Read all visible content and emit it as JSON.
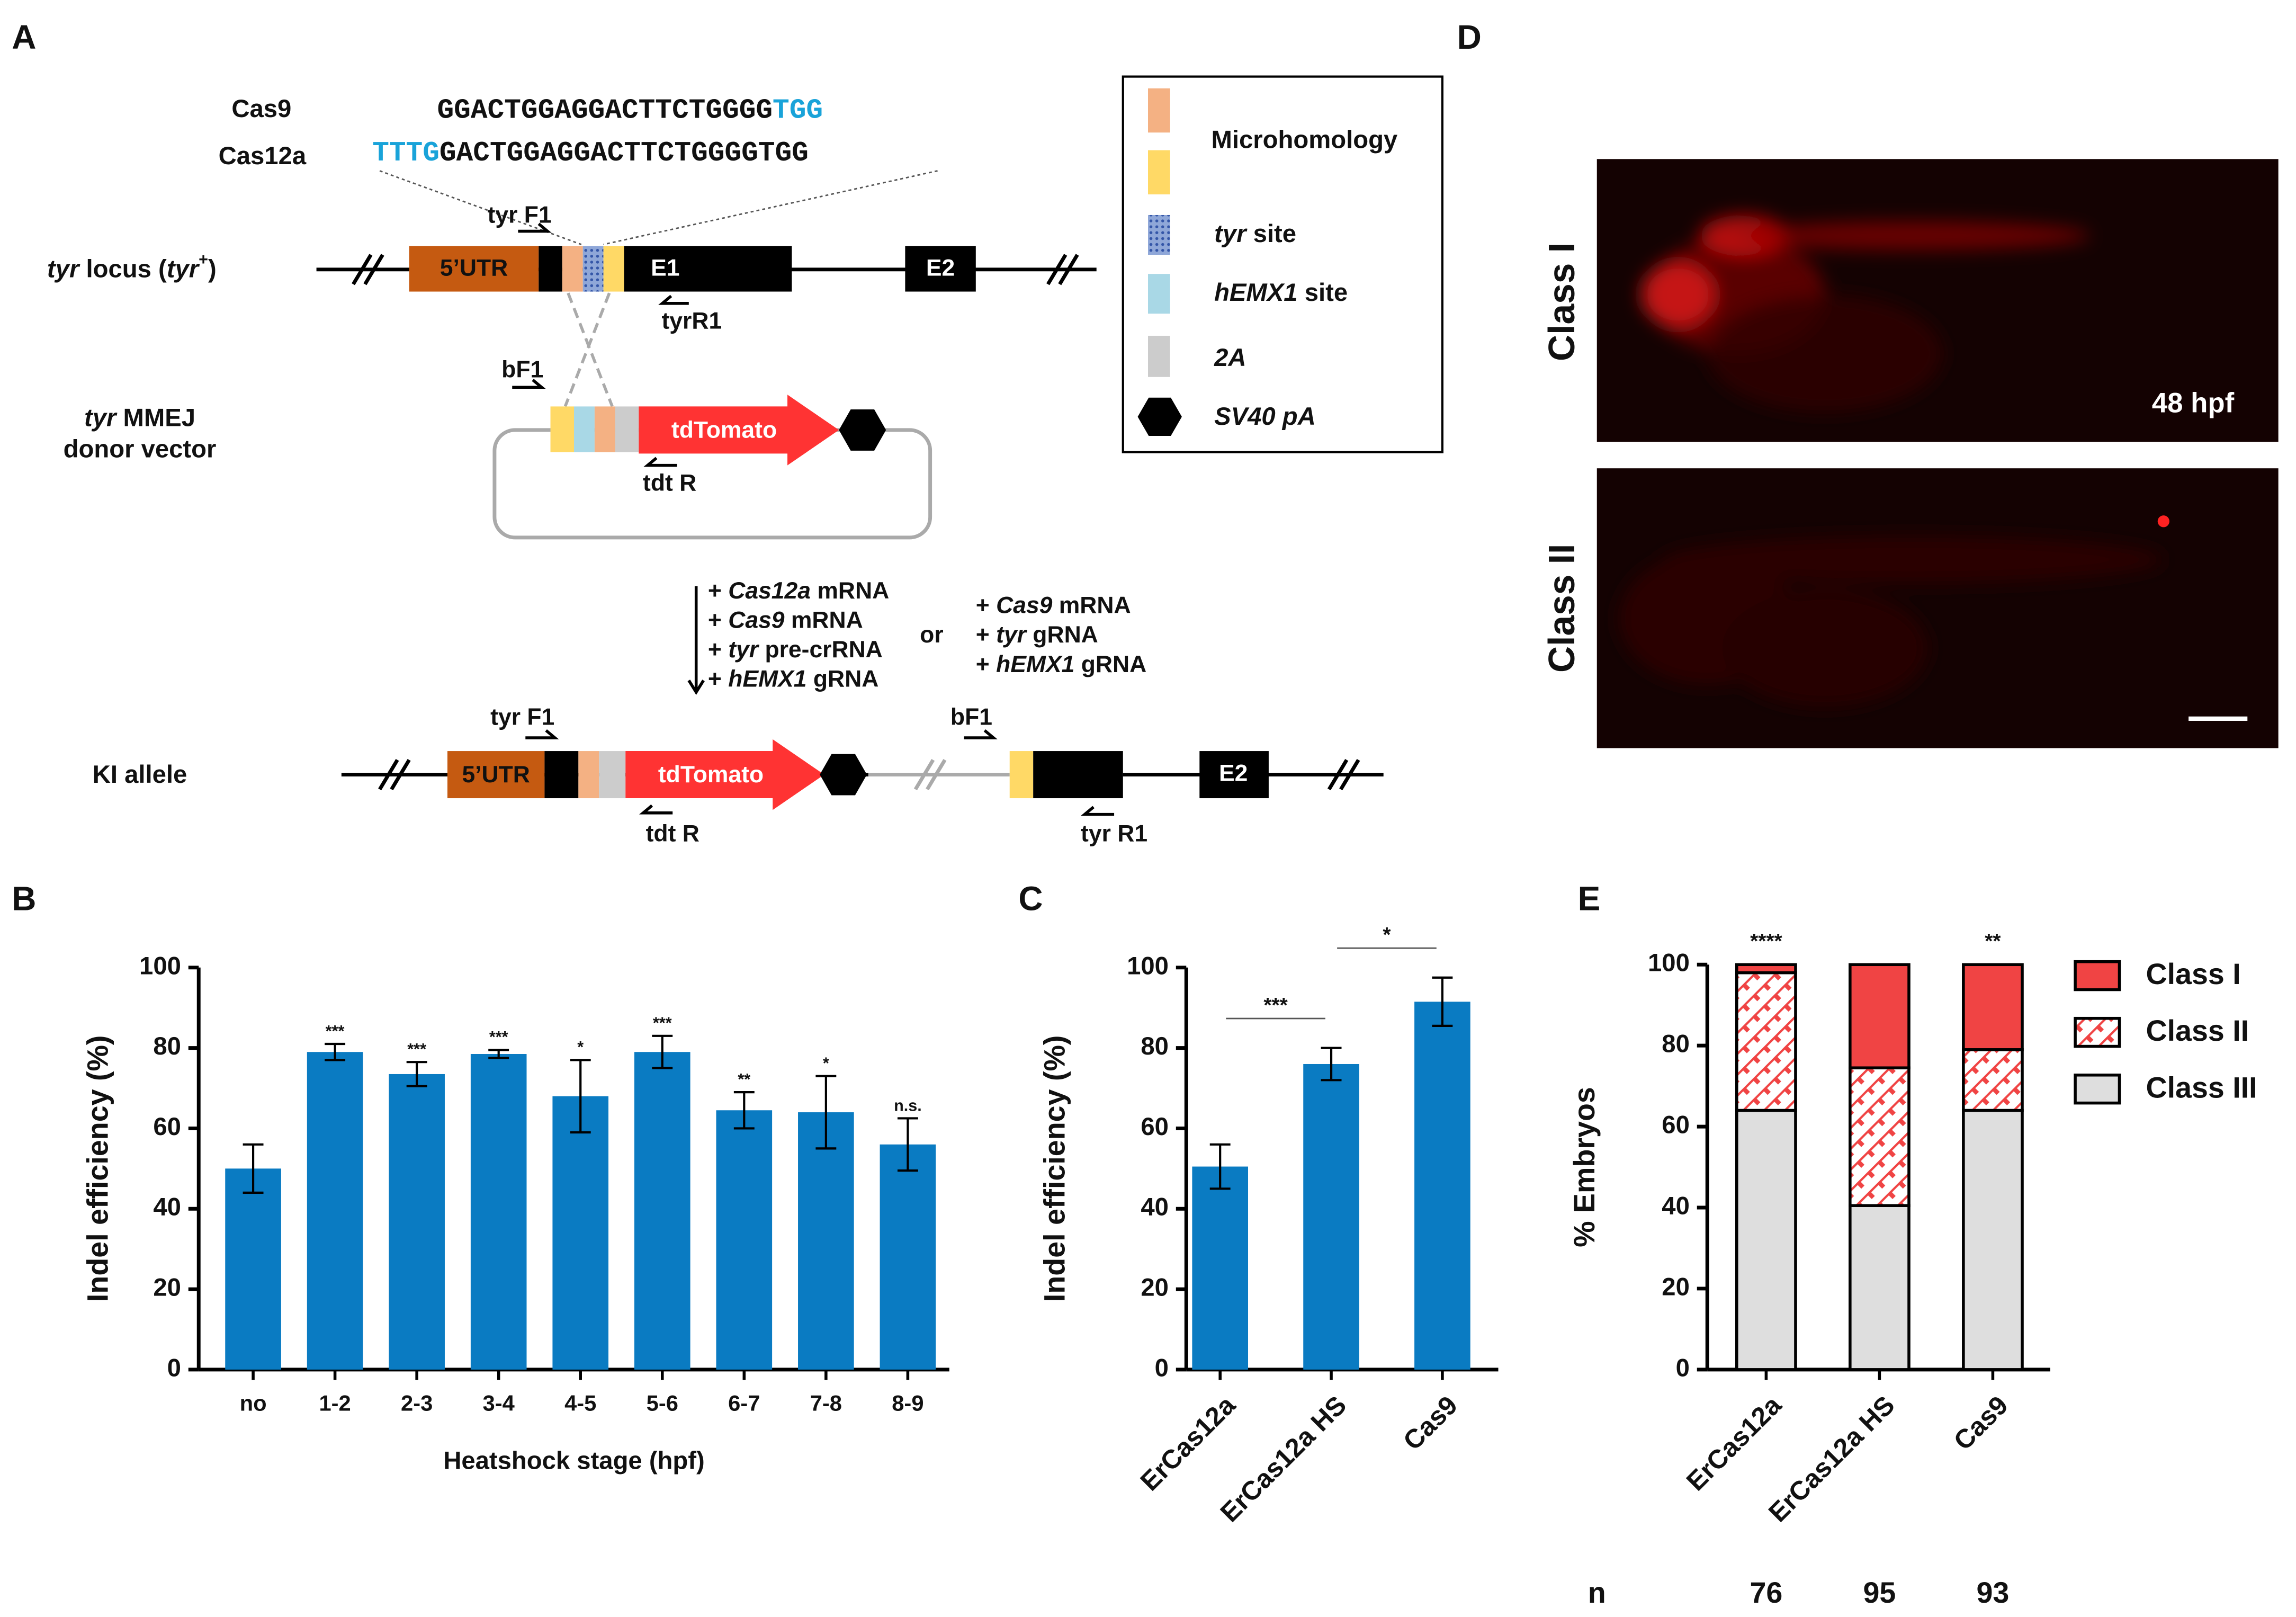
{
  "panel_labels": [
    "A",
    "B",
    "C",
    "D",
    "E"
  ],
  "diagram": {
    "sequences": [
      {
        "name": "Cas9",
        "parts": [
          "GGACTGGAGGACTTCTGGGG",
          "TGG"
        ]
      },
      {
        "name": "Cas12a",
        "parts": [
          "TTTG",
          "GACTGGAGGACTTCTGGGGTGG"
        ]
      }
    ],
    "locus_label": [
      "tyr",
      " locus (",
      "tyr",
      "+",
      ")"
    ],
    "locus_boxes": [
      "5’UTR",
      "E1",
      "E2"
    ],
    "locus_primers": [
      "tyr F1",
      "tyrR1"
    ],
    "donor_label": [
      [
        "tyr",
        " MMEJ"
      ],
      [
        "donor vector"
      ]
    ],
    "donor_parts": [
      "tdTomato"
    ],
    "donor_primers": [
      "bF1",
      "tdt R"
    ],
    "conditions_left": [
      [
        "+ ",
        "Cas12a",
        " mRNA"
      ],
      [
        "+ ",
        "Cas9",
        " mRNA"
      ],
      [
        "+ ",
        "tyr",
        " pre-crRNA"
      ],
      [
        "+ ",
        "hEMX1",
        " gRNA"
      ]
    ],
    "or": "or",
    "conditions_right": [
      [
        "+ ",
        "Cas9",
        " mRNA"
      ],
      [
        "+ ",
        "tyr",
        " gRNA"
      ],
      [
        "+ ",
        "hEMX1",
        " gRNA"
      ]
    ],
    "ki_label": "KI allele",
    "ki_boxes": [
      "5’UTR",
      "tdTomato",
      "E2"
    ],
    "ki_primers": [
      "tyr F1",
      "bF1",
      "tdt R",
      "tyr R1"
    ],
    "legend": [
      [
        "Microhomology"
      ],
      [
        "tyr",
        " site"
      ],
      [
        "hEMX1",
        " site"
      ],
      [
        "2A"
      ],
      [
        "SV40 pA"
      ]
    ]
  },
  "images": {
    "labels": [
      "Class I",
      "Class II"
    ],
    "annotation": "48 hpf"
  },
  "chart_data": [
    {
      "type": "bar",
      "ylabel": "Indel efficiency (%)",
      "xlabel": "Heatshock stage (hpf)",
      "categories": [
        "no",
        "1-2",
        "2-3",
        "3-4",
        "4-5",
        "5-6",
        "6-7",
        "7-8",
        "8-9"
      ],
      "values": [
        50,
        79,
        73.5,
        78.5,
        68,
        79,
        64.5,
        64,
        56
      ],
      "errors": [
        6,
        2,
        3,
        1,
        9,
        4,
        4.5,
        9,
        6.5
      ],
      "significance": [
        null,
        "***",
        "***",
        "***",
        "*",
        "***",
        "**",
        "*",
        "n.s."
      ],
      "color": "#0a7bc2",
      "ylim": [
        0,
        100
      ],
      "yticks": [
        0,
        20,
        40,
        60,
        80,
        100
      ]
    },
    {
      "type": "bar",
      "ylabel": "Indel efficiency (%)",
      "categories": [
        "ErCas12a",
        "ErCas12a HS",
        "Cas9"
      ],
      "values": [
        50.5,
        76,
        91.5
      ],
      "errors": [
        5.5,
        4,
        6
      ],
      "comparisons": [
        {
          "between": [
            0,
            1
          ],
          "label": "***"
        },
        {
          "between": [
            1,
            2
          ],
          "label": "*"
        }
      ],
      "color": "#0a7bc2",
      "ylim": [
        0,
        100
      ],
      "yticks": [
        0,
        20,
        40,
        60,
        80,
        100
      ]
    },
    {
      "type": "stacked_bar",
      "ylabel": "% Embryos",
      "categories": [
        "ErCas12a",
        "ErCas12a HS",
        "Cas9"
      ],
      "series": [
        {
          "name": "Class I",
          "color": "#f04444",
          "values": [
            2,
            25.5,
            21
          ]
        },
        {
          "name": "Class II",
          "color": "#f04444",
          "pattern": "hatch",
          "values": [
            34,
            34,
            15
          ]
        },
        {
          "name": "Class III",
          "color": "#dedede",
          "values": [
            64,
            40.5,
            64
          ]
        }
      ],
      "significance": [
        "****",
        null,
        "**"
      ],
      "n_label": "n",
      "n_values": [
        76,
        95,
        93
      ],
      "legend": "right",
      "ylim": [
        0,
        100
      ],
      "yticks": [
        0,
        20,
        40,
        60,
        80,
        100
      ]
    }
  ]
}
